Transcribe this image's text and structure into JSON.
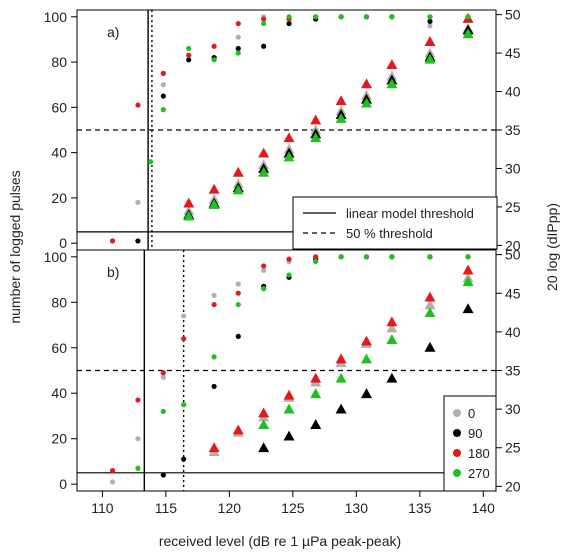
{
  "chart_data": [
    {
      "panel": "a)",
      "type": "scatter",
      "xlabel": "received level (dB re 1 µPa peak-peak)",
      "ylabel_left": "number of logged pulses",
      "ylabel_right": "20 log (dIPpp)",
      "xlim": [
        108,
        141
      ],
      "ylim_left": [
        -3,
        103
      ],
      "ylim_right": [
        19.4,
        50.6
      ],
      "x_ticks": [
        110,
        115,
        120,
        125,
        130,
        135,
        140
      ],
      "y_ticks_left": [
        0,
        20,
        40,
        60,
        80,
        100
      ],
      "y_ticks_right": [
        20,
        25,
        30,
        35,
        40,
        45,
        50
      ],
      "thresholds": {
        "linear_model": 113.6,
        "fifty_percent": 113.9
      },
      "hlines": {
        "solid_left_value": 5,
        "dashed_left_value": 50
      },
      "series": [
        {
          "name": "0",
          "color": "#b0b0b0",
          "pulses": [
            [
              110.8,
              1
            ],
            [
              112.8,
              18
            ],
            [
              114.8,
              70
            ],
            [
              116.8,
              83
            ],
            [
              118.8,
              82
            ],
            [
              120.7,
              91
            ],
            [
              122.7,
              100
            ],
            [
              124.7,
              99
            ],
            [
              126.8,
              100
            ],
            [
              128.8,
              100
            ],
            [
              130.8,
              100
            ],
            [
              132.8,
              100
            ],
            [
              135.8,
              96
            ],
            [
              138.8,
              100
            ]
          ],
          "dipp": [
            [
              116.8,
              24.5
            ],
            [
              118.8,
              26
            ],
            [
              120.7,
              28
            ],
            [
              122.7,
              30.5
            ],
            [
              124.7,
              32.5
            ],
            [
              126.8,
              35
            ],
            [
              128.8,
              37.5
            ],
            [
              130.8,
              39.5
            ],
            [
              132.8,
              42
            ],
            [
              135.8,
              45
            ],
            [
              138.8,
              48.2
            ]
          ]
        },
        {
          "name": "90",
          "color": "#000000",
          "pulses": [
            [
              112.8,
              1
            ],
            [
              114.8,
              65
            ],
            [
              116.8,
              81
            ],
            [
              118.8,
              82
            ],
            [
              120.7,
              86
            ],
            [
              122.7,
              87
            ],
            [
              124.7,
              97
            ],
            [
              126.8,
              99
            ],
            [
              128.8,
              100
            ],
            [
              130.8,
              100
            ],
            [
              132.8,
              100
            ],
            [
              135.8,
              98
            ],
            [
              138.8,
              100
            ]
          ],
          "dipp": [
            [
              116.8,
              24
            ],
            [
              118.8,
              25.5
            ],
            [
              120.7,
              27.5
            ],
            [
              122.7,
              30
            ],
            [
              124.7,
              32
            ],
            [
              126.8,
              34.5
            ],
            [
              128.8,
              37
            ],
            [
              130.8,
              39
            ],
            [
              132.8,
              41.5
            ],
            [
              135.8,
              44.5
            ],
            [
              138.8,
              48
            ]
          ]
        },
        {
          "name": "180",
          "color": "#e31a1c",
          "pulses": [
            [
              110.8,
              1
            ],
            [
              112.8,
              61
            ],
            [
              114.8,
              75
            ],
            [
              116.8,
              83
            ],
            [
              118.8,
              87
            ],
            [
              120.7,
              97
            ],
            [
              122.7,
              99
            ],
            [
              124.7,
              99
            ],
            [
              126.8,
              100
            ],
            [
              128.8,
              100
            ],
            [
              130.8,
              100
            ],
            [
              132.8,
              100
            ],
            [
              135.8,
              100
            ],
            [
              138.8,
              100
            ]
          ],
          "dipp": [
            [
              116.8,
              25.5
            ],
            [
              118.8,
              27.3
            ],
            [
              120.7,
              29.5
            ],
            [
              122.7,
              32
            ],
            [
              124.7,
              34
            ],
            [
              126.8,
              36.3
            ],
            [
              128.8,
              38.8
            ],
            [
              130.8,
              41
            ],
            [
              132.8,
              43.5
            ],
            [
              135.8,
              46.5
            ],
            [
              138.8,
              49.5
            ]
          ]
        },
        {
          "name": "270",
          "color": "#1fc11f",
          "pulses": [
            [
              113.8,
              36
            ],
            [
              114.8,
              59
            ],
            [
              116.8,
              86
            ],
            [
              118.8,
              81
            ],
            [
              120.7,
              84
            ],
            [
              122.7,
              97
            ],
            [
              124.7,
              100
            ],
            [
              126.8,
              100
            ],
            [
              128.8,
              100
            ],
            [
              130.8,
              100
            ],
            [
              132.8,
              100
            ],
            [
              135.8,
              100
            ],
            [
              138.8,
              100
            ]
          ],
          "dipp": [
            [
              116.8,
              23.8
            ],
            [
              118.8,
              25.3
            ],
            [
              120.7,
              27.2
            ],
            [
              122.7,
              29.5
            ],
            [
              124.7,
              31.5
            ],
            [
              126.8,
              34
            ],
            [
              128.8,
              36.5
            ],
            [
              130.8,
              38.5
            ],
            [
              132.8,
              41
            ],
            [
              135.8,
              44.2
            ],
            [
              138.8,
              47.5
            ]
          ]
        }
      ]
    },
    {
      "panel": "b)",
      "type": "scatter",
      "xlabel": "received level (dB re 1 µPa peak-peak)",
      "ylabel_left": "number of logged pulses",
      "ylabel_right": "20 log (dIPpp)",
      "xlim": [
        108,
        141
      ],
      "ylim_left": [
        -3,
        103
      ],
      "ylim_right": [
        19.4,
        50.6
      ],
      "x_ticks": [
        110,
        115,
        120,
        125,
        130,
        135,
        140
      ],
      "y_ticks_left": [
        0,
        20,
        40,
        60,
        80,
        100
      ],
      "y_ticks_right": [
        20,
        25,
        30,
        35,
        40,
        45,
        50
      ],
      "thresholds": {
        "linear_model": 113.3,
        "fifty_percent": 116.4
      },
      "hlines": {
        "solid_left_value": 5,
        "dashed_left_value": 50
      },
      "series": [
        {
          "name": "0",
          "color": "#b0b0b0",
          "pulses": [
            [
              110.8,
              1
            ],
            [
              112.8,
              20
            ],
            [
              114.8,
              47
            ],
            [
              116.4,
              74
            ],
            [
              118.8,
              83
            ],
            [
              120.7,
              88
            ],
            [
              122.7,
              94
            ],
            [
              124.7,
              98
            ],
            [
              126.8,
              100
            ],
            [
              128.8,
              100
            ],
            [
              130.8,
              100
            ],
            [
              132.8,
              100
            ],
            [
              135.8,
              100
            ],
            [
              138.8,
              100
            ]
          ],
          "dipp": [
            [
              118.8,
              24.5
            ],
            [
              120.7,
              27
            ],
            [
              122.7,
              29
            ],
            [
              124.7,
              31.5
            ],
            [
              126.8,
              33.5
            ],
            [
              128.8,
              36
            ],
            [
              130.8,
              38.5
            ],
            [
              132.8,
              40.5
            ],
            [
              135.8,
              43.5
            ],
            [
              138.8,
              47
            ]
          ]
        },
        {
          "name": "90",
          "color": "#000000",
          "pulses": [
            [
              114.8,
              4
            ],
            [
              116.4,
              11
            ],
            [
              118.8,
              43
            ],
            [
              120.7,
              65
            ],
            [
              122.7,
              87
            ],
            [
              124.7,
              91
            ],
            [
              126.8,
              99
            ],
            [
              128.8,
              100
            ],
            [
              130.8,
              100
            ],
            [
              132.8,
              100
            ],
            [
              135.8,
              100
            ],
            [
              138.8,
              100
            ]
          ],
          "dipp": [
            [
              122.7,
              25
            ],
            [
              124.7,
              26.5
            ],
            [
              126.8,
              28
            ],
            [
              128.8,
              30
            ],
            [
              130.8,
              32
            ],
            [
              132.8,
              34
            ],
            [
              135.8,
              38
            ],
            [
              138.8,
              43
            ]
          ]
        },
        {
          "name": "180",
          "color": "#e31a1c",
          "pulses": [
            [
              110.8,
              6
            ],
            [
              112.8,
              37
            ],
            [
              114.8,
              49
            ],
            [
              116.4,
              64
            ],
            [
              118.8,
              79
            ],
            [
              120.7,
              84
            ],
            [
              122.7,
              96
            ],
            [
              124.7,
              99
            ],
            [
              126.8,
              100
            ],
            [
              128.8,
              100
            ],
            [
              130.8,
              100
            ],
            [
              132.8,
              100
            ],
            [
              135.8,
              100
            ],
            [
              138.8,
              100
            ]
          ],
          "dipp": [
            [
              118.8,
              25
            ],
            [
              120.7,
              27.3
            ],
            [
              122.7,
              29.5
            ],
            [
              124.7,
              31.8
            ],
            [
              126.8,
              34
            ],
            [
              128.8,
              36.5
            ],
            [
              130.8,
              38.8
            ],
            [
              132.8,
              41.3
            ],
            [
              135.8,
              44.5
            ],
            [
              138.8,
              48
            ]
          ]
        },
        {
          "name": "270",
          "color": "#1fc11f",
          "pulses": [
            [
              112.8,
              7
            ],
            [
              114.8,
              32
            ],
            [
              116.4,
              35
            ],
            [
              118.8,
              56
            ],
            [
              120.7,
              79
            ],
            [
              122.7,
              86
            ],
            [
              124.7,
              92
            ],
            [
              126.8,
              98
            ],
            [
              128.8,
              100
            ],
            [
              130.8,
              100
            ],
            [
              132.8,
              100
            ],
            [
              135.8,
              100
            ],
            [
              138.8,
              100
            ]
          ],
          "dipp": [
            [
              122.7,
              28
            ],
            [
              124.7,
              30
            ],
            [
              126.8,
              32
            ],
            [
              128.8,
              34
            ],
            [
              130.8,
              36.5
            ],
            [
              132.8,
              39
            ],
            [
              135.8,
              42.5
            ],
            [
              138.8,
              46.5
            ]
          ]
        }
      ]
    }
  ],
  "legend_lines": {
    "linear": "linear model threshold",
    "fifty": "50 % threshold"
  },
  "legend_angles_title": ""
}
